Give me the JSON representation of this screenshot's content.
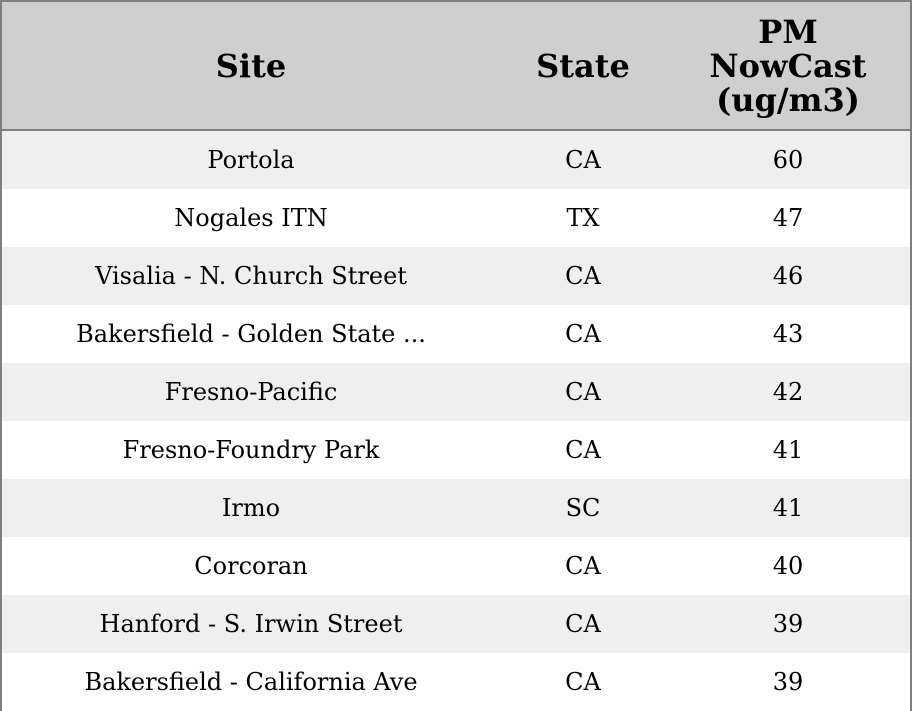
{
  "chart_data": {
    "type": "table",
    "columns": [
      "Site",
      "State",
      "PM NowCast (ug/m3)"
    ],
    "header_lines": [
      [
        "Site"
      ],
      [
        "State"
      ],
      [
        "PM",
        "NowCast",
        "(ug/m3)"
      ]
    ],
    "rows": [
      [
        "Portola",
        "CA",
        "60"
      ],
      [
        "Nogales ITN",
        "TX",
        "47"
      ],
      [
        "Visalia - N. Church Street",
        "CA",
        "46"
      ],
      [
        "Bakersfield - Golden State ...",
        "CA",
        "43"
      ],
      [
        "Fresno-Pacific",
        "CA",
        "42"
      ],
      [
        "Fresno-Foundry Park",
        "CA",
        "41"
      ],
      [
        "Irmo",
        "SC",
        "41"
      ],
      [
        "Corcoran",
        "CA",
        "40"
      ],
      [
        "Hanford - S. Irwin Street",
        "CA",
        "39"
      ],
      [
        "Bakersfield - California Ave",
        "CA",
        "39"
      ]
    ],
    "colors": {
      "header_background": "#cfcfcf",
      "row_stripe": "#efefef",
      "row_background": "#ffffff",
      "border": "#7f7f7f"
    }
  }
}
